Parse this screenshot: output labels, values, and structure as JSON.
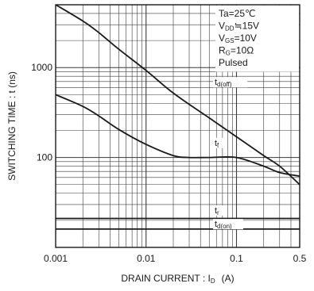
{
  "chart_data": {
    "type": "line",
    "xlabel": "DRAIN CURRENT : I",
    "xlabel_sub": "D",
    "xlabel_unit": "(A)",
    "ylabel": "SWITCHING TIME : t  (ns)",
    "xscale": "log",
    "yscale": "log",
    "xlim": [
      0.001,
      0.5
    ],
    "ylim": [
      10,
      5000
    ],
    "grid": true,
    "xticks": [
      {
        "value": 0.001,
        "label": "0.001"
      },
      {
        "value": 0.01,
        "label": "0.01"
      },
      {
        "value": 0.1,
        "label": "0.1"
      },
      {
        "value": 0.5,
        "label": "0.5"
      }
    ],
    "yticks": [
      {
        "value": 100,
        "label": "100"
      },
      {
        "value": 1000,
        "label": "1000"
      }
    ],
    "conditions": [
      {
        "main": "Ta=25℃",
        "sub": "",
        "tail": ""
      },
      {
        "main": "V",
        "sub": "DD",
        "tail": "≒15V"
      },
      {
        "main": "V",
        "sub": "GS",
        "tail": "=10V"
      },
      {
        "main": "R",
        "sub": "G",
        "tail": "=10Ω"
      },
      {
        "main": "Pulsed",
        "sub": "",
        "tail": ""
      }
    ],
    "series": [
      {
        "name": "t",
        "name_sub": "d(off)",
        "x": [
          0.001,
          0.002,
          0.003,
          0.005,
          0.01,
          0.02,
          0.05,
          0.1,
          0.2,
          0.3,
          0.5
        ],
        "y": [
          5000,
          3300,
          2450,
          1600,
          930,
          520,
          275,
          170,
          105,
          80,
          50
        ]
      },
      {
        "name": "t",
        "name_sub": "f",
        "x": [
          0.001,
          0.002,
          0.003,
          0.005,
          0.01,
          0.02,
          0.03,
          0.05,
          0.1,
          0.2,
          0.3,
          0.5
        ],
        "y": [
          500,
          370,
          290,
          205,
          140,
          105,
          100,
          100,
          100,
          80,
          68,
          62
        ]
      },
      {
        "name": "t",
        "name_sub": "r",
        "x": [
          0.001,
          0.5
        ],
        "y": [
          21,
          21
        ]
      },
      {
        "name": "t",
        "name_sub": "d(on)",
        "x": [
          0.001,
          0.5
        ],
        "y": [
          16,
          16
        ]
      }
    ]
  }
}
